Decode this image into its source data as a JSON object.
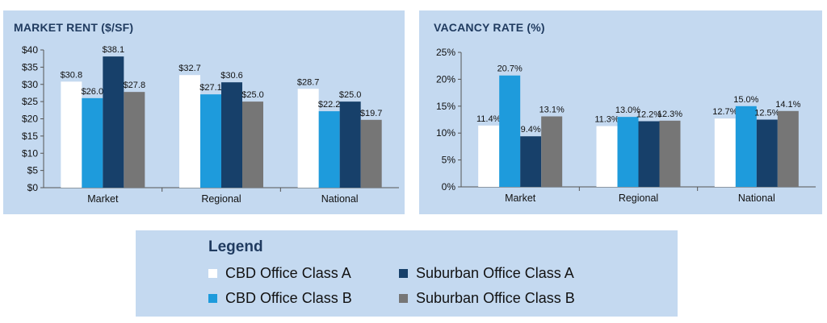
{
  "colors": {
    "panel_bg": "#c4d9f0",
    "cbd_a": "#ffffff",
    "cbd_b": "#1e9bdc",
    "sub_a": "#17406a",
    "sub_b": "#767676"
  },
  "legend": {
    "title": "Legend",
    "items": [
      {
        "label": "CBD Office Class A",
        "color": "#ffffff"
      },
      {
        "label": "Suburban Office Class A",
        "color": "#17406a"
      },
      {
        "label": "CBD Office Class B",
        "color": "#1e9bdc"
      },
      {
        "label": "Suburban Office Class B",
        "color": "#767676"
      }
    ]
  },
  "chart_data": [
    {
      "type": "bar",
      "title": "MARKET RENT  ($/SF)",
      "categories": [
        "Market",
        "Regional",
        "National"
      ],
      "ylim": [
        0,
        40
      ],
      "yticks": [
        "$0",
        "$5",
        "$10",
        "$15",
        "$20",
        "$25",
        "$30",
        "$35",
        "$40"
      ],
      "grid": false,
      "series": [
        {
          "name": "CBD Office Class A",
          "values": [
            30.8,
            32.7,
            28.7
          ],
          "labels": [
            "$30.8",
            "$32.7",
            "$28.7"
          ]
        },
        {
          "name": "CBD Office Class B",
          "values": [
            26.0,
            27.1,
            22.2
          ],
          "labels": [
            "$26.0",
            "$27.1",
            "$22.2"
          ]
        },
        {
          "name": "Suburban Office Class A",
          "values": [
            38.1,
            30.6,
            25.0
          ],
          "labels": [
            "$38.1",
            "$30.6",
            "$25.0"
          ]
        },
        {
          "name": "Suburban Office Class B",
          "values": [
            27.8,
            25.0,
            19.7
          ],
          "labels": [
            "$27.8",
            "$25.0",
            "$19.7"
          ]
        }
      ]
    },
    {
      "type": "bar",
      "title": "VACANCY RATE (%)",
      "categories": [
        "Market",
        "Regional",
        "National"
      ],
      "ylim": [
        0,
        25
      ],
      "yticks": [
        "0%",
        "5%",
        "10%",
        "15%",
        "20%",
        "25%"
      ],
      "grid": false,
      "series": [
        {
          "name": "CBD Office Class A",
          "values": [
            11.4,
            11.3,
            12.7
          ],
          "labels": [
            "11.4%",
            "11.3%",
            "12.7%"
          ]
        },
        {
          "name": "CBD Office Class B",
          "values": [
            20.7,
            13.0,
            15.0
          ],
          "labels": [
            "20.7%",
            "13.0%",
            "15.0%"
          ]
        },
        {
          "name": "Suburban Office Class A",
          "values": [
            9.4,
            12.2,
            12.5
          ],
          "labels": [
            "9.4%",
            "12.2%",
            "12.5%"
          ]
        },
        {
          "name": "Suburban Office Class B",
          "values": [
            13.1,
            12.3,
            14.1
          ],
          "labels": [
            "13.1%",
            "12.3%",
            "14.1%"
          ]
        }
      ]
    }
  ]
}
